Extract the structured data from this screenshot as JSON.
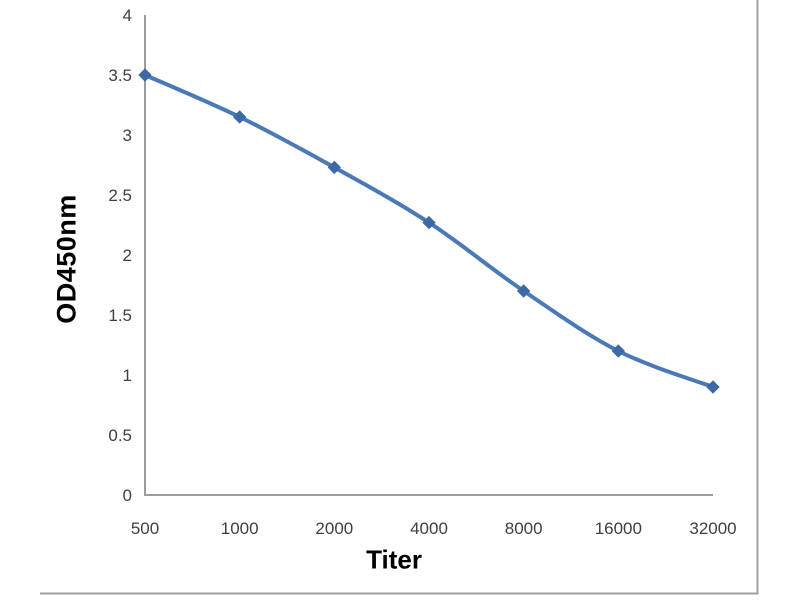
{
  "chart_data": {
    "type": "line",
    "title": "",
    "xlabel": "Titer",
    "ylabel": "OD450nm",
    "categories": [
      "500",
      "1000",
      "2000",
      "4000",
      "8000",
      "16000",
      "32000"
    ],
    "values": [
      3.5,
      3.15,
      2.73,
      2.27,
      1.7,
      1.2,
      0.9
    ],
    "ylim": [
      0,
      4
    ],
    "yticks": [
      0,
      0.5,
      1,
      1.5,
      2,
      2.5,
      3,
      3.5,
      4
    ],
    "ytick_labels": [
      "0",
      "0.5",
      "1",
      "1.5",
      "2",
      "2.5",
      "3",
      "3.5",
      "4"
    ],
    "grid": "off",
    "legend": "none",
    "line_style": "smoothed",
    "marker_style": "diamond",
    "colors": {
      "line": "#4a79b5",
      "marker": "#3d6aa5",
      "axis": "#9c9c9c",
      "tick_text": "#3f3f3f",
      "axis_title_text": "#000000",
      "frame_border": "#a0a0a0",
      "background": "#ffffff"
    }
  }
}
